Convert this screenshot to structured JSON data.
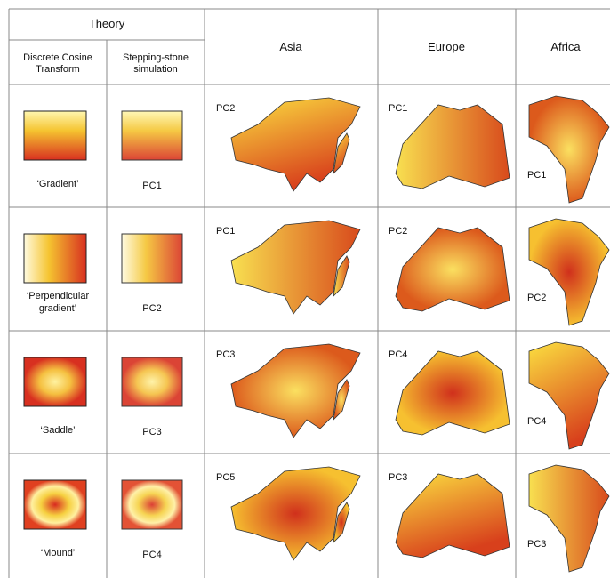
{
  "header": {
    "theory": "Theory",
    "columns": [
      "Discrete Cosine Transform",
      "Stepping-stone simulation",
      "Asia",
      "Europe",
      "Africa"
    ]
  },
  "rows": [
    {
      "pattern": "‘Gradient’",
      "simulation": "PC1",
      "asia": "PC2",
      "europe": "PC1",
      "africa": "PC1"
    },
    {
      "pattern": "‘Perpendicular gradient’",
      "simulation": "PC2",
      "asia": "PC1",
      "europe": "PC2",
      "africa": "PC2"
    },
    {
      "pattern": "‘Saddle’",
      "simulation": "PC3",
      "asia": "PC3",
      "europe": "PC4",
      "africa": "PC4"
    },
    {
      "pattern": "‘Mound’",
      "simulation": "PC4",
      "asia": "PC5",
      "europe": "PC3",
      "africa": "PC3"
    }
  ]
}
